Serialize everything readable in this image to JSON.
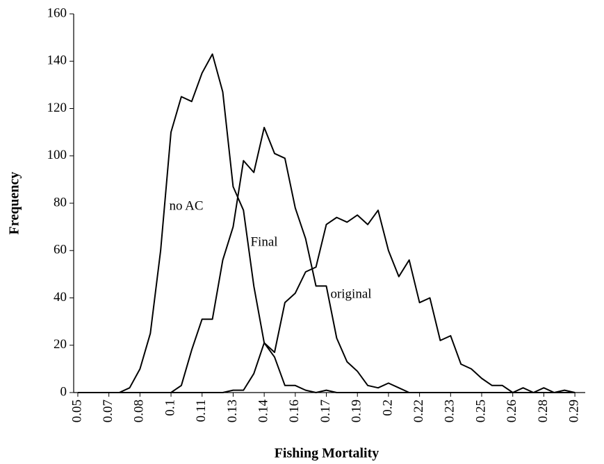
{
  "chart_data": {
    "type": "line",
    "x_label": "Fishing Mortality",
    "y_label": "Frequency",
    "annotations": [
      "no AC",
      "Final",
      "original"
    ],
    "x": [
      0.05,
      0.055,
      0.06,
      0.065,
      0.07,
      0.075,
      0.08,
      0.085,
      0.09,
      0.095,
      0.1,
      0.105,
      0.11,
      0.115,
      0.12,
      0.125,
      0.13,
      0.135,
      0.14,
      0.145,
      0.15,
      0.155,
      0.16,
      0.165,
      0.17,
      0.175,
      0.18,
      0.185,
      0.19,
      0.195,
      0.2,
      0.205,
      0.21,
      0.215,
      0.22,
      0.225,
      0.23,
      0.235,
      0.24,
      0.245,
      0.25,
      0.255,
      0.26,
      0.265,
      0.27,
      0.275,
      0.28,
      0.285,
      0.29
    ],
    "series": [
      {
        "name": "no AC",
        "color": "#000000",
        "values": [
          0,
          0,
          0,
          0,
          0,
          2,
          10,
          25,
          60,
          110,
          125,
          123,
          135,
          143,
          127,
          87,
          77,
          45,
          21,
          15,
          3,
          3,
          1,
          0,
          1,
          0,
          0,
          0,
          0,
          0,
          0,
          0,
          0,
          0,
          0,
          0,
          0,
          0,
          0,
          0,
          0,
          0,
          0,
          0,
          0,
          0,
          0,
          0,
          0
        ]
      },
      {
        "name": "Final",
        "color": "#000000",
        "values": [
          0,
          0,
          0,
          0,
          0,
          0,
          0,
          0,
          0,
          0,
          3,
          18,
          31,
          31,
          56,
          70,
          98,
          93,
          112,
          101,
          99,
          78,
          65,
          45,
          45,
          23,
          13,
          9,
          3,
          2,
          4,
          2,
          0,
          0,
          0,
          0,
          0,
          0,
          0,
          0,
          0,
          0,
          0,
          0,
          0,
          0,
          0,
          0,
          0
        ]
      },
      {
        "name": "original",
        "color": "#000000",
        "values": [
          0,
          0,
          0,
          0,
          0,
          0,
          0,
          0,
          0,
          0,
          0,
          0,
          0,
          0,
          0,
          1,
          1,
          8,
          21,
          17,
          38,
          42,
          51,
          53,
          71,
          74,
          72,
          75,
          71,
          77,
          60,
          49,
          56,
          38,
          40,
          22,
          24,
          12,
          10,
          6,
          3,
          3,
          0,
          2,
          0,
          2,
          0,
          1,
          0
        ]
      }
    ],
    "xlim": [
      0.048,
      0.295
    ],
    "xticks": [
      0.05,
      {
        "value": 0.065,
        "label": "0.07"
      },
      0.08,
      {
        "value": 0.095,
        "label": "0.1"
      },
      0.11,
      {
        "value": 0.125,
        "label": "0.13"
      },
      0.14,
      {
        "value": 0.155,
        "label": "0.16"
      },
      0.17,
      {
        "value": 0.185,
        "label": "0.19"
      },
      0.2,
      {
        "value": 0.215,
        "label": "0.22"
      },
      0.23,
      {
        "value": 0.245,
        "label": "0.25"
      },
      0.26,
      {
        "value": 0.275,
        "label": "0.28"
      },
      0.29
    ],
    "ylim": [
      0,
      160
    ],
    "yticks": [
      0,
      20,
      40,
      60,
      80,
      100,
      120,
      140,
      160
    ],
    "grid": false
  }
}
